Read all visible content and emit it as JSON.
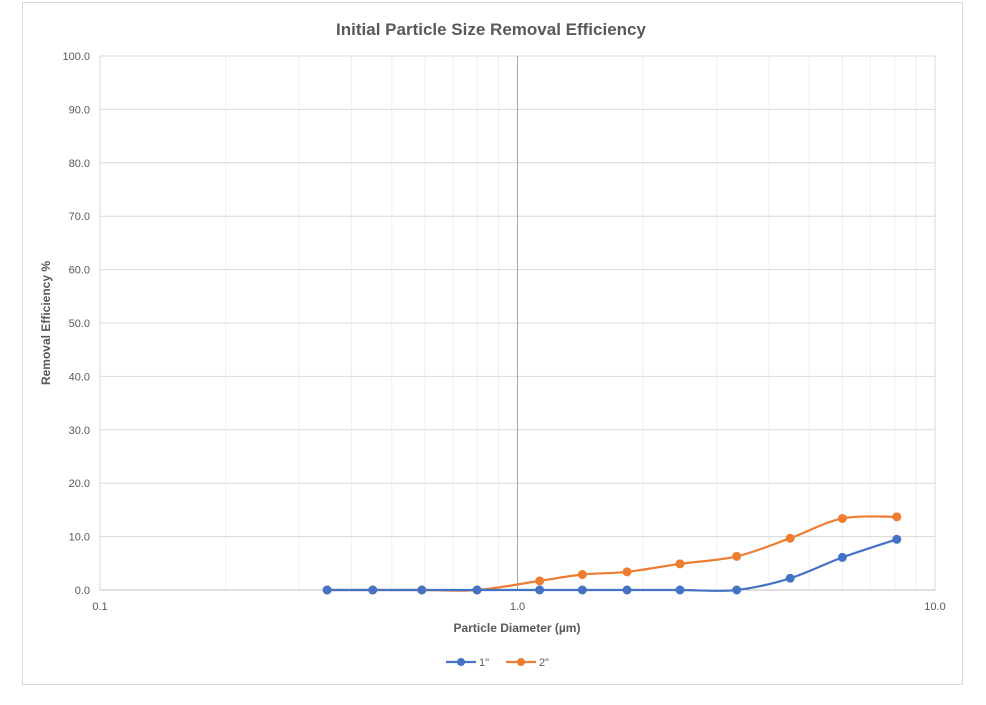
{
  "chart_data": {
    "type": "line",
    "title": "Initial Particle Size Removal Efficiency",
    "xlabel": "Particle Diameter (µm)",
    "ylabel": "Removal Efficiency %",
    "x_scale": "log",
    "xlim": [
      0.1,
      10.0
    ],
    "ylim": [
      0,
      100
    ],
    "x_ticks": [
      "0.1",
      "1.0",
      "10.0"
    ],
    "y_ticks": [
      "0.0",
      "10.0",
      "20.0",
      "30.0",
      "40.0",
      "50.0",
      "60.0",
      "70.0",
      "80.0",
      "90.0",
      "100.0"
    ],
    "grid": true,
    "legend_position": "bottom",
    "series": [
      {
        "name": "1\"",
        "color": "#4472C4",
        "x": [
          0.35,
          0.45,
          0.59,
          0.8,
          1.13,
          1.43,
          1.83,
          2.45,
          3.35,
          4.5,
          6.0,
          8.1
        ],
        "y": [
          0.0,
          0.0,
          0.0,
          0.0,
          0.0,
          0.0,
          0.0,
          0.0,
          0.0,
          2.2,
          6.1,
          9.5
        ]
      },
      {
        "name": "2\"",
        "color": "#ED7D31",
        "x": [
          0.35,
          0.45,
          0.59,
          0.8,
          1.13,
          1.43,
          1.83,
          2.45,
          3.35,
          4.5,
          6.0,
          8.1
        ],
        "y": [
          0.0,
          0.0,
          0.0,
          0.0,
          1.7,
          2.9,
          3.4,
          4.9,
          6.3,
          9.7,
          13.4,
          13.7
        ]
      }
    ]
  }
}
